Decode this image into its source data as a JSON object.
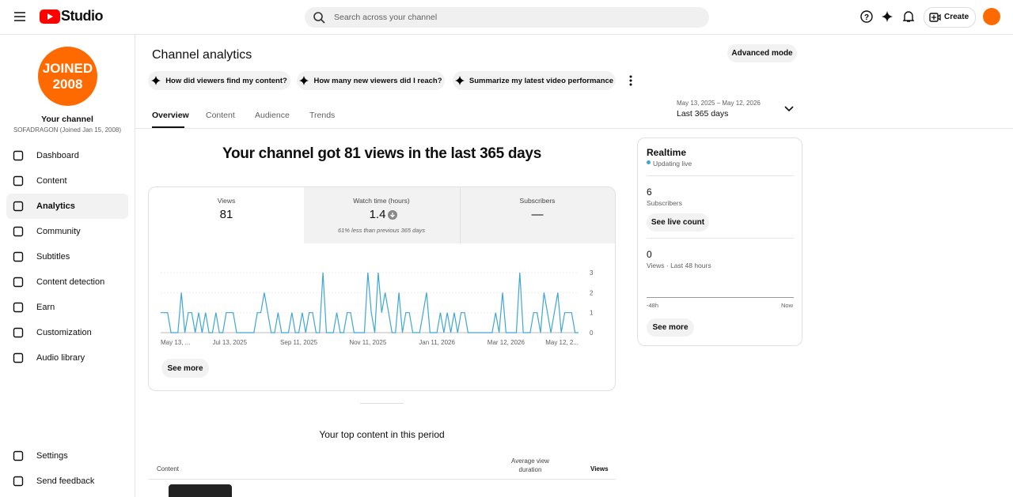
{
  "header": {
    "logo": "Studio",
    "search_placeholder": "Search across your channel",
    "create": "Create"
  },
  "sidebar": {
    "avatar_lines": [
      "JOINED",
      "2008"
    ],
    "channel_title": "Your channel",
    "channel_sub": "SOFADRAGON (Joined Jan 15, 2008)",
    "nav": [
      "Dashboard",
      "Content",
      "Analytics",
      "Community",
      "Subtitles",
      "Content detection",
      "Earn",
      "Customization",
      "Audio library"
    ],
    "footer": [
      "Settings",
      "Send feedback"
    ]
  },
  "page": {
    "title": "Channel analytics",
    "advanced": "Advanced mode",
    "chips": [
      "How did viewers find my content?",
      "How many new viewers did I reach?",
      "Summarize my latest video performance"
    ],
    "tabs": [
      "Overview",
      "Content",
      "Audience",
      "Trends"
    ],
    "date_range": "May 13, 2025 – May 12, 2026",
    "period": "Last 365 days"
  },
  "summary": {
    "headline": "Your channel got 81 views in the last 365 days",
    "metrics": [
      {
        "label": "Views",
        "value": 81
      },
      {
        "label": "Watch time (hours)",
        "value": 1.4,
        "note": "61% less than previous 365 days"
      },
      {
        "label": "Subscribers",
        "value": "—"
      }
    ],
    "see_more": "See more"
  },
  "chart_data": {
    "type": "line",
    "color": "#3ea6d6",
    "grid": true,
    "ylim": [
      0,
      3
    ],
    "yticks": [
      0,
      1,
      2,
      3
    ],
    "categories": [
      "May 13, ...",
      null,
      null,
      null,
      null,
      null,
      null,
      null,
      null,
      null,
      null,
      null,
      null,
      null,
      null,
      null,
      null,
      null,
      null,
      null,
      "Jul 13, 2025",
      null,
      null,
      null,
      null,
      null,
      null,
      null,
      null,
      null,
      null,
      null,
      null,
      null,
      null,
      null,
      null,
      null,
      null,
      null,
      "Sep 11, 2025",
      null,
      null,
      null,
      null,
      null,
      null,
      null,
      null,
      null,
      null,
      null,
      null,
      null,
      null,
      null,
      null,
      null,
      null,
      null,
      "Nov 11, 2025",
      null,
      null,
      null,
      null,
      null,
      null,
      null,
      null,
      null,
      null,
      null,
      null,
      null,
      null,
      null,
      null,
      null,
      null,
      null,
      "Jan 11, 2026",
      null,
      null,
      null,
      null,
      null,
      null,
      null,
      null,
      null,
      null,
      null,
      null,
      null,
      null,
      null,
      null,
      null,
      null,
      null,
      "Mar 12, 2026",
      null,
      null,
      null,
      null,
      null,
      null,
      null,
      null,
      null,
      null,
      null,
      null,
      null,
      null,
      null,
      null,
      null,
      null,
      null,
      null,
      "May 12, 2..."
    ],
    "values": [
      1,
      1,
      1,
      0,
      0,
      0,
      2,
      0,
      1,
      1,
      0,
      1,
      0,
      1,
      0,
      0,
      1,
      0,
      0,
      1,
      1,
      1,
      0,
      0,
      0,
      0,
      0,
      0,
      1,
      1,
      2,
      1,
      0,
      0,
      1,
      0,
      0,
      0,
      1,
      0,
      0,
      1,
      0,
      1,
      1,
      0,
      0,
      3,
      0,
      0,
      0,
      1,
      0,
      0,
      1,
      1,
      0,
      0,
      0,
      0,
      3,
      1,
      0,
      3,
      1,
      2,
      1,
      0,
      0,
      2,
      0,
      1,
      1,
      0,
      0,
      0,
      1,
      2,
      0,
      0,
      0,
      1,
      0,
      1,
      0,
      1,
      0,
      1,
      1,
      0,
      0,
      0,
      0,
      0,
      0,
      0,
      0,
      1,
      0,
      2,
      0,
      0,
      0,
      0,
      3,
      0,
      0,
      0,
      1,
      1,
      0,
      2,
      1,
      0,
      1,
      2,
      0,
      1,
      1,
      1,
      0,
      0
    ]
  },
  "realtime": {
    "title": "Realtime",
    "status": "Updating live",
    "subscribers": 6,
    "subscribers_label": "Subscribers",
    "live_button": "See live count",
    "views": 0,
    "views_label": "Views · Last 48 hours",
    "axis_start": "-48h",
    "axis_end": "Now",
    "see_more": "See more"
  },
  "top_content": {
    "title": "Your top content in this period",
    "columns": [
      "Content",
      "Average view duration",
      "Views"
    ]
  }
}
